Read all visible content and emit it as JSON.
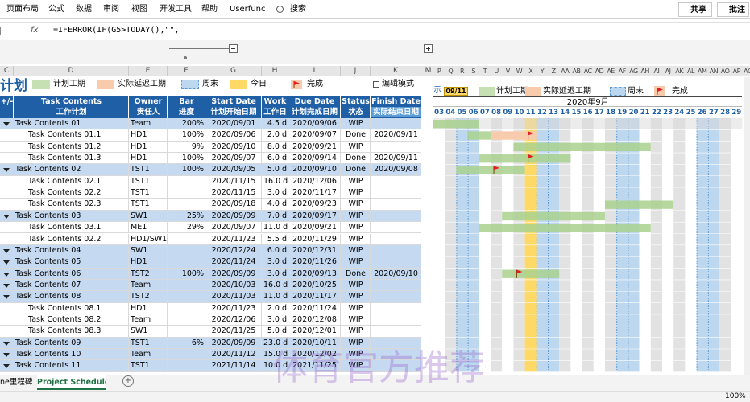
{
  "ribbon": {
    "tabs": [
      "页面布局",
      "公式",
      "数据",
      "审阅",
      "视图",
      "开发工具",
      "帮助",
      "Userfunc"
    ],
    "search": "搜索",
    "share": "共享",
    "comments": "批注"
  },
  "formula_bar": {
    "fx": "fx",
    "formula": "=IFERROR(IF(G5>TODAY(),\"\","
  },
  "columns": {
    "table": [
      "C",
      "D",
      "E",
      "F",
      "G",
      "H",
      "I",
      "J",
      "K"
    ],
    "gantt": [
      "M",
      "P",
      "Q",
      "R",
      "S",
      "T",
      "U",
      "V",
      "W",
      "X",
      "Y",
      "Z",
      "AA",
      "AB",
      "AC",
      "AD",
      "AE",
      "AF",
      "AG",
      "AH",
      "AI",
      "AJ",
      "AK",
      "AL",
      "AM",
      "AN",
      "AO",
      "AP",
      "AQ"
    ]
  },
  "sheet": {
    "title": "计划",
    "legend": [
      "计划工期",
      "实际延迟工期",
      "周末",
      "今日",
      "完成"
    ],
    "edit_mode": "编辑模式",
    "headers": [
      [
        "+/-"
      ],
      [
        "Task Contents",
        "工作计划"
      ],
      [
        "Owner",
        "责任人"
      ],
      [
        "Bar",
        "进度"
      ],
      [
        "Start Date",
        "计划开始日期"
      ],
      [
        "Work",
        "工作日"
      ],
      [
        "Due Date",
        "计划完成日期"
      ],
      [
        "Status",
        "状态"
      ],
      [
        "Finish Date",
        "实际结束日期"
      ]
    ],
    "rows": [
      {
        "group": true,
        "task": "Task Contents 01",
        "owner": "Team",
        "bar": "200%",
        "start": "2020/09/01",
        "work": "4.5 d",
        "due": "2020/09/06",
        "status": "WIP"
      },
      {
        "group": false,
        "task": "Task Contents 01.1",
        "owner": "HD1",
        "bar": "100%",
        "start": "2020/09/06",
        "work": "2.0 d",
        "due": "2020/09/07",
        "status": "Done",
        "finish": "2020/09/11"
      },
      {
        "group": false,
        "task": "Task Contents 01.2",
        "owner": "HD1",
        "bar": "9%",
        "start": "2020/09/10",
        "work": "8.0 d",
        "due": "2020/09/21",
        "status": "WIP"
      },
      {
        "group": false,
        "task": "Task Contents 01.3",
        "owner": "HD1",
        "bar": "100%",
        "start": "2020/09/07",
        "work": "6.0 d",
        "due": "2020/09/14",
        "status": "Done",
        "finish": "2020/09/11"
      },
      {
        "group": true,
        "task": "Task Contents 02",
        "owner": "TST1",
        "bar": "100%",
        "start": "2020/09/05",
        "work": "5.0 d",
        "due": "2020/09/10",
        "status": "Done",
        "finish": "2020/09/08"
      },
      {
        "group": false,
        "task": "Task Contents 02.1",
        "owner": "TST1",
        "start": "2020/11/15",
        "work": "16.0 d",
        "due": "2020/12/06",
        "status": "WIP"
      },
      {
        "group": false,
        "task": "Task Contents 02.2",
        "owner": "TST1",
        "start": "2020/11/15",
        "work": "3.0 d",
        "due": "2020/11/17",
        "status": "WIP"
      },
      {
        "group": false,
        "task": "Task Contents 02.3",
        "owner": "TST1",
        "start": "2020/09/18",
        "work": "4.0 d",
        "due": "2020/09/23",
        "status": "WIP"
      },
      {
        "group": true,
        "task": "Task Contents 03",
        "owner": "SW1",
        "bar": "25%",
        "start": "2020/09/09",
        "work": "7.0 d",
        "due": "2020/09/17",
        "status": "WIP"
      },
      {
        "group": false,
        "task": "Task Contents 03.1",
        "owner": "ME1",
        "bar": "29%",
        "start": "2020/09/07",
        "work": "11.0 d",
        "due": "2020/09/21",
        "status": "WIP"
      },
      {
        "group": false,
        "task": "Task Contents 02.2",
        "owner": "HD1/SW1",
        "start": "2020/11/23",
        "work": "5.5 d",
        "due": "2020/11/29",
        "status": "WIP"
      },
      {
        "group": true,
        "task": "Task Contents 04",
        "owner": "SW1",
        "start": "2020/12/24",
        "work": "6.0 d",
        "due": "2020/12/31",
        "status": "WIP"
      },
      {
        "group": true,
        "task": "Task Contents 05",
        "owner": "HD1",
        "start": "2020/11/24",
        "work": "3.0 d",
        "due": "2020/11/26",
        "status": "WIP"
      },
      {
        "group": true,
        "task": "Task Contents 06",
        "owner": "TST2",
        "bar": "100%",
        "start": "2020/09/09",
        "work": "3.0 d",
        "due": "2020/09/13",
        "status": "Done",
        "finish": "2020/09/10"
      },
      {
        "group": true,
        "task": "Task Contents 07",
        "owner": "Team",
        "start": "2020/10/03",
        "work": "16.0 d",
        "due": "2020/10/25",
        "status": "WIP"
      },
      {
        "group": true,
        "task": "Task Contents 08",
        "owner": "TST2",
        "start": "2020/11/03",
        "work": "11.0 d",
        "due": "2020/11/17",
        "status": "WIP"
      },
      {
        "group": false,
        "task": "Task Contents 08.1",
        "owner": "HD1",
        "start": "2020/11/23",
        "work": "2.0 d",
        "due": "2020/11/24",
        "status": "WIP"
      },
      {
        "group": false,
        "task": "Task Contents 08.2",
        "owner": "Team",
        "start": "2020/12/06",
        "work": "3.0 d",
        "due": "2020/12/08",
        "status": "WIP"
      },
      {
        "group": false,
        "task": "Task Contents 08.3",
        "owner": "SW1",
        "start": "2020/11/25",
        "work": "5.0 d",
        "due": "2020/12/01",
        "status": "WIP"
      },
      {
        "group": true,
        "task": "Task Contents 09",
        "owner": "TST1",
        "bar": "6%",
        "start": "2020/09/09",
        "work": "23.0 d",
        "due": "2020/10/11",
        "status": "WIP"
      },
      {
        "group": true,
        "task": "Task Contents 10",
        "owner": "Team",
        "start": "2020/11/12",
        "work": "15.0 d",
        "due": "2020/12/02",
        "status": "WIP"
      },
      {
        "group": true,
        "task": "Task Contents 11",
        "owner": "TST1",
        "start": "2021/11/14",
        "work": "10.0 d",
        "due": "2021/11/25",
        "status": "WIP"
      }
    ]
  },
  "gantt": {
    "show_label": "示",
    "today": "09/11",
    "month": "2020年9月",
    "days": [
      "03",
      "04",
      "05",
      "06",
      "07",
      "08",
      "09",
      "10",
      "11",
      "12",
      "13",
      "14",
      "15",
      "16",
      "17",
      "18",
      "19",
      "20",
      "21",
      "22",
      "23",
      "24",
      "25",
      "26",
      "27",
      "28",
      "29"
    ]
  },
  "tabs": {
    "sheets": [
      "ne里程碑",
      "Project Schedule"
    ],
    "active": 1,
    "add": "+"
  },
  "status_bar": {
    "zoom": "100%"
  },
  "watermark": "体育官方推荐"
}
